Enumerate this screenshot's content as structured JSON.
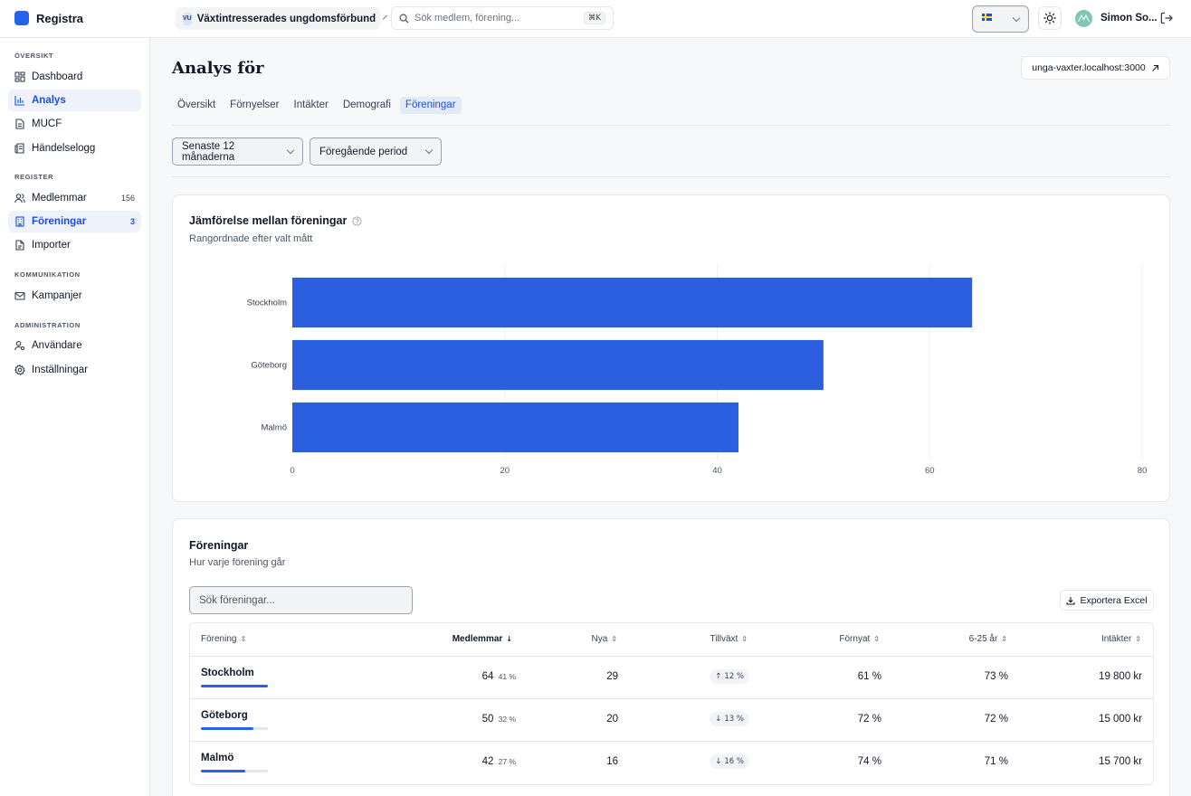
{
  "app": {
    "name": "Registra"
  },
  "topbar": {
    "org_badge": "VU",
    "org_name": "Växtintresserades ungdomsförbund",
    "search_placeholder": "Sök medlem, förening...",
    "search_shortcut": "⌘K",
    "user_name": "Simon So...",
    "icons": {
      "search": "search-icon",
      "theme": "sun-icon",
      "logout": "logout-icon",
      "language": "swedish-flag-icon"
    }
  },
  "sidebar": {
    "sections": [
      {
        "label": "ÖVERSIKT",
        "items": [
          {
            "label": "Dashboard",
            "icon": "dashboard-icon",
            "active": false
          },
          {
            "label": "Analys",
            "icon": "bar-chart-icon",
            "active": true
          },
          {
            "label": "MUCF",
            "icon": "document-icon",
            "active": false
          },
          {
            "label": "Händelselogg",
            "icon": "log-icon",
            "active": false
          }
        ]
      },
      {
        "label": "REGISTER",
        "items": [
          {
            "label": "Medlemmar",
            "icon": "users-icon",
            "count": "156",
            "active": false
          },
          {
            "label": "Föreningar",
            "icon": "building-icon",
            "count": "3",
            "active": true
          },
          {
            "label": "Importer",
            "icon": "file-icon",
            "active": false
          }
        ]
      },
      {
        "label": "KOMMUNIKATION",
        "items": [
          {
            "label": "Kampanjer",
            "icon": "mail-icon",
            "active": false
          }
        ]
      },
      {
        "label": "ADMINISTRATION",
        "items": [
          {
            "label": "Användare",
            "icon": "user-settings-icon",
            "active": false
          },
          {
            "label": "Inställningar",
            "icon": "gear-icon",
            "active": false
          }
        ]
      }
    ]
  },
  "main": {
    "title": "Analys för",
    "url_button": "unga-vaxter.localhost:3000",
    "tabs": [
      {
        "label": "Översikt",
        "active": false
      },
      {
        "label": "Förnyelser",
        "active": false
      },
      {
        "label": "Intäkter",
        "active": false
      },
      {
        "label": "Demografi",
        "active": false
      },
      {
        "label": "Föreningar",
        "active": true
      }
    ],
    "filters": {
      "period": "Senaste 12 månaderna",
      "compare": "Föregående period"
    }
  },
  "comparison_card": {
    "title": "Jämförelse mellan föreningar",
    "subtitle": "Rangordnade efter valt mått"
  },
  "chart_data": {
    "type": "bar",
    "orientation": "horizontal",
    "categories": [
      "Stockholm",
      "Göteborg",
      "Malmö"
    ],
    "values": [
      64,
      50,
      42
    ],
    "xlim": [
      0,
      80
    ],
    "xticks": [
      "0",
      "20",
      "40",
      "60",
      "80"
    ],
    "grid": true,
    "color": "#2c5fdf",
    "title": "",
    "xlabel": "",
    "ylabel": ""
  },
  "associations_card": {
    "title": "Föreningar",
    "subtitle": "Hur varje förening går",
    "search_placeholder": "Sök föreningar...",
    "export_label": "Exportera Excel",
    "columns": [
      "Förening",
      "Medlemmar",
      "Nya",
      "Tillväxt",
      "Förnyat",
      "6-25 år",
      "Intäkter"
    ],
    "sorted_column": "Medlemmar",
    "rows": [
      {
        "name": "Stockholm",
        "share": 1.0,
        "members": "64",
        "members_pct": "41 %",
        "new": "29",
        "growth_dir": "up",
        "growth": "12 %",
        "renewed": "61 %",
        "youth": "73 %",
        "revenue": "19 800 kr"
      },
      {
        "name": "Göteborg",
        "share": 0.78,
        "members": "50",
        "members_pct": "32 %",
        "new": "20",
        "growth_dir": "down",
        "growth": "13 %",
        "renewed": "72 %",
        "youth": "72 %",
        "revenue": "15 000 kr"
      },
      {
        "name": "Malmö",
        "share": 0.66,
        "members": "42",
        "members_pct": "27 %",
        "new": "16",
        "growth_dir": "down",
        "growth": "16 %",
        "renewed": "74 %",
        "youth": "71 %",
        "revenue": "15 700 kr"
      }
    ]
  }
}
